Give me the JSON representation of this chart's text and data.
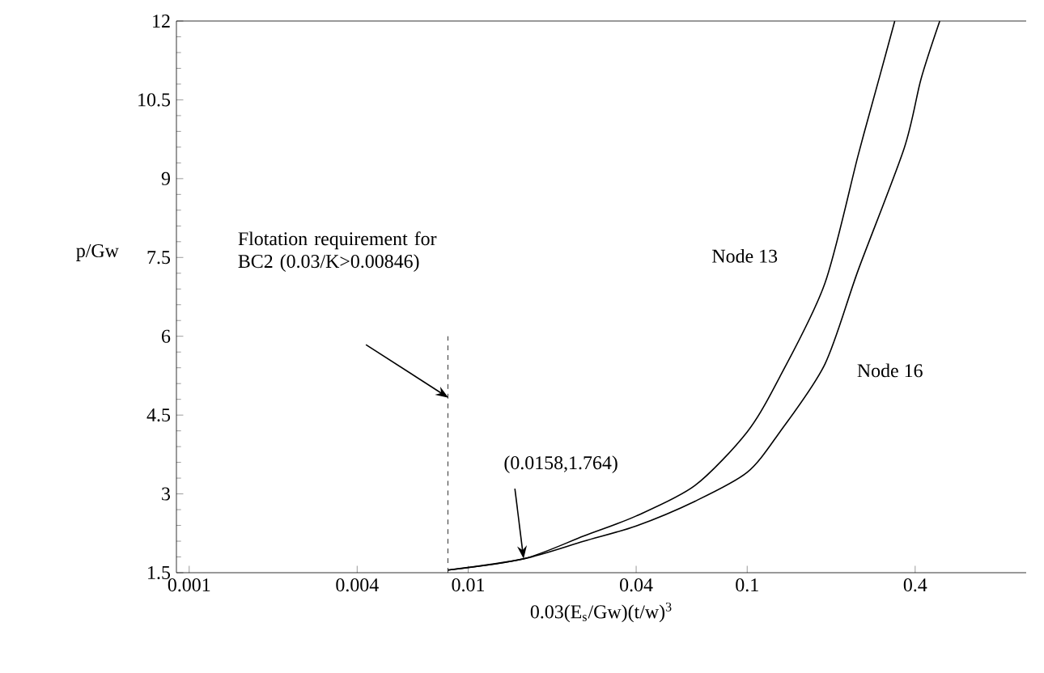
{
  "chart_data": {
    "type": "line",
    "xlabel": "0.03(E$_{s}$/Gw)(t/w)$^{3}$",
    "ylabel": "p/Gw",
    "log": "x",
    "xlim": [
      0.0009,
      1
    ],
    "ylim": [
      1.5,
      12
    ],
    "xticks": [
      0.001,
      0.004,
      0.01,
      0.04,
      0.1,
      0.4
    ],
    "yticks": [
      1.5,
      3,
      4.5,
      6,
      7.5,
      9,
      10.5,
      12
    ],
    "series": [
      {
        "name": "Node 13",
        "color": "#000000",
        "x": [
          0.00846,
          0.0158,
          0.026,
          0.04,
          0.065,
          0.1,
          0.131,
          0.19,
          0.25,
          0.3,
          0.338
        ],
        "values": [
          1.55,
          1.764,
          2.2,
          2.58,
          3.16,
          4.18,
          5.23,
          7.01,
          9.45,
          10.99,
          12
        ]
      },
      {
        "name": "Node 16",
        "color": "#000000",
        "x": [
          0.00846,
          0.0158,
          0.026,
          0.04,
          0.065,
          0.1,
          0.131,
          0.19,
          0.25,
          0.365,
          0.42,
          0.49
        ],
        "values": [
          1.55,
          1.764,
          2.1,
          2.39,
          2.86,
          3.41,
          4.18,
          5.47,
          7.26,
          9.57,
          10.9,
          12
        ]
      }
    ],
    "ref_lines": [
      {
        "axis": "x",
        "value": 0.00846,
        "color": "#000000",
        "line_style": "dashed"
      }
    ],
    "annotations": [
      "Flotation requirement for BC2 (0.03/K>0.00846)",
      {
        "text": "(0.0158,1.764)",
        "x": 0.0158,
        "y": 1.764
      }
    ],
    "grid": false,
    "legend": false,
    "line_style": "solid",
    "marker": "none"
  }
}
